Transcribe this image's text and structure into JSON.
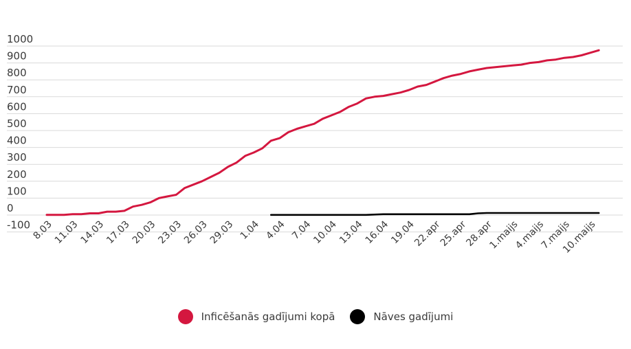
{
  "chart_data": {
    "type": "line",
    "ylim": [
      -100,
      1000
    ],
    "y_ticks": [
      "1000",
      "900",
      "800",
      "700",
      "600",
      "500",
      "400",
      "300",
      "200",
      "100",
      "0",
      "-100"
    ],
    "x_tick_labels": [
      "8.03",
      "11.03",
      "14.03",
      "17.03",
      "20.03",
      "23.03",
      "26.03",
      "29.03",
      "1.04",
      "4.04",
      "7.04",
      "10.04",
      "13.04",
      "16.04",
      "19.04",
      "22.apr",
      "25.apr",
      "28.apr",
      "1.maijs",
      "4.maijs",
      "7.maijs",
      "10.maijs"
    ],
    "grid": true,
    "legend_position": "bottom",
    "series": [
      {
        "name": "Inficēšanās gadījumi kopā",
        "color": "#d4173f",
        "x": [
          "8.03",
          "9.03",
          "10.03",
          "11.03",
          "12.03",
          "13.03",
          "14.03",
          "15.03",
          "16.03",
          "17.03",
          "18.03",
          "19.03",
          "20.03",
          "21.03",
          "22.03",
          "23.03",
          "24.03",
          "25.03",
          "26.03",
          "27.03",
          "28.03",
          "29.03",
          "30.03",
          "31.03",
          "1.04",
          "2.04",
          "3.04",
          "4.04",
          "5.04",
          "6.04",
          "7.04",
          "8.04",
          "9.04",
          "10.04",
          "11.04",
          "12.04",
          "13.04",
          "14.04",
          "15.04",
          "16.04",
          "17.04",
          "18.04",
          "19.04",
          "20.04",
          "21.04",
          "22.04",
          "23.04",
          "24.04",
          "25.04",
          "26.04",
          "27.04",
          "28.04",
          "29.04",
          "30.04",
          "1.05",
          "2.05",
          "3.05",
          "4.05",
          "5.05",
          "6.05",
          "7.05",
          "8.05",
          "9.05",
          "10.05",
          "11.05"
        ],
        "values": [
          1,
          1,
          1,
          5,
          5,
          10,
          10,
          20,
          20,
          25,
          50,
          60,
          75,
          100,
          110,
          120,
          160,
          180,
          200,
          225,
          250,
          285,
          310,
          350,
          370,
          395,
          440,
          455,
          490,
          510,
          525,
          540,
          570,
          590,
          610,
          640,
          660,
          690,
          700,
          705,
          715,
          725,
          740,
          760,
          770,
          790,
          810,
          825,
          835,
          850,
          860,
          870,
          875,
          880,
          885,
          890,
          900,
          905,
          915,
          920,
          930,
          935,
          945,
          960,
          975
        ]
      },
      {
        "name": "Nāves gadījumi",
        "color": "#000000",
        "x": [
          "3.04",
          "4.04",
          "5.04",
          "6.04",
          "7.04",
          "8.04",
          "9.04",
          "10.04",
          "11.04",
          "12.04",
          "13.04",
          "14.04",
          "15.04",
          "16.04",
          "17.04",
          "18.04",
          "19.04",
          "20.04",
          "21.04",
          "22.04",
          "23.04",
          "24.04",
          "25.04",
          "26.04",
          "27.04",
          "28.04",
          "29.04",
          "30.04",
          "1.05",
          "2.05",
          "3.05",
          "4.05",
          "5.05",
          "6.05",
          "7.05",
          "8.05",
          "9.05",
          "10.05",
          "11.05"
        ],
        "values": [
          1,
          1,
          1,
          1,
          1,
          1,
          1,
          1,
          1,
          1,
          1,
          1,
          3,
          5,
          5,
          5,
          5,
          5,
          5,
          5,
          5,
          5,
          5,
          5,
          10,
          12,
          12,
          12,
          12,
          12,
          12,
          12,
          12,
          12,
          12,
          12,
          12,
          12,
          12
        ]
      }
    ]
  },
  "legend": [
    {
      "label": "Inficēšanās gadījumi kopā",
      "color": "#d4173f"
    },
    {
      "label": "Nāves gadījumi",
      "color": "#000000"
    }
  ]
}
